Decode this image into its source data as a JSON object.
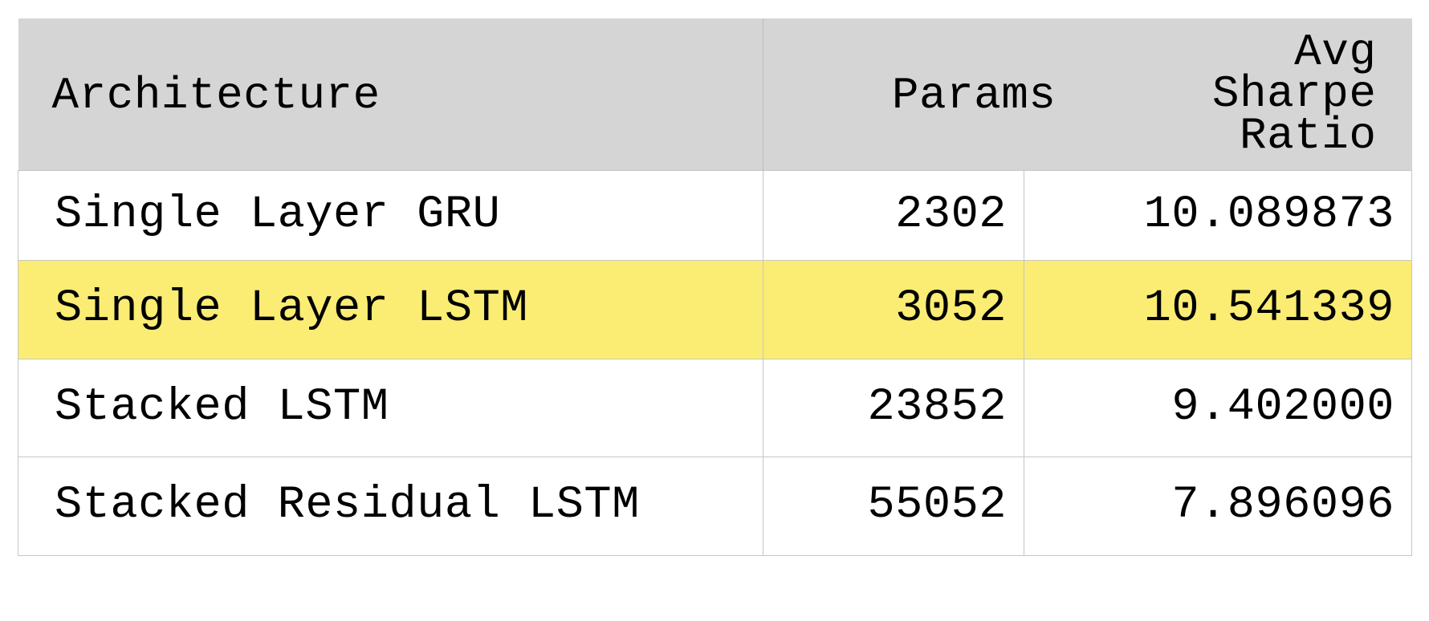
{
  "table": {
    "headers": {
      "architecture": "Architecture",
      "params": "Params",
      "sharpe": "Avg Sharpe Ratio"
    },
    "highlight_color": "#fbec74",
    "header_bg": "#d5d5d5",
    "rows": [
      {
        "architecture": "Single Layer GRU",
        "params": "2302",
        "sharpe": "10.089873",
        "highlighted": false
      },
      {
        "architecture": "Single Layer LSTM",
        "params": "3052",
        "sharpe": "10.541339",
        "highlighted": true
      },
      {
        "architecture": "Stacked LSTM",
        "params": "23852",
        "sharpe": "9.402000",
        "highlighted": false
      },
      {
        "architecture": "Stacked Residual LSTM",
        "params": "55052",
        "sharpe": "7.896096",
        "highlighted": false
      }
    ]
  }
}
